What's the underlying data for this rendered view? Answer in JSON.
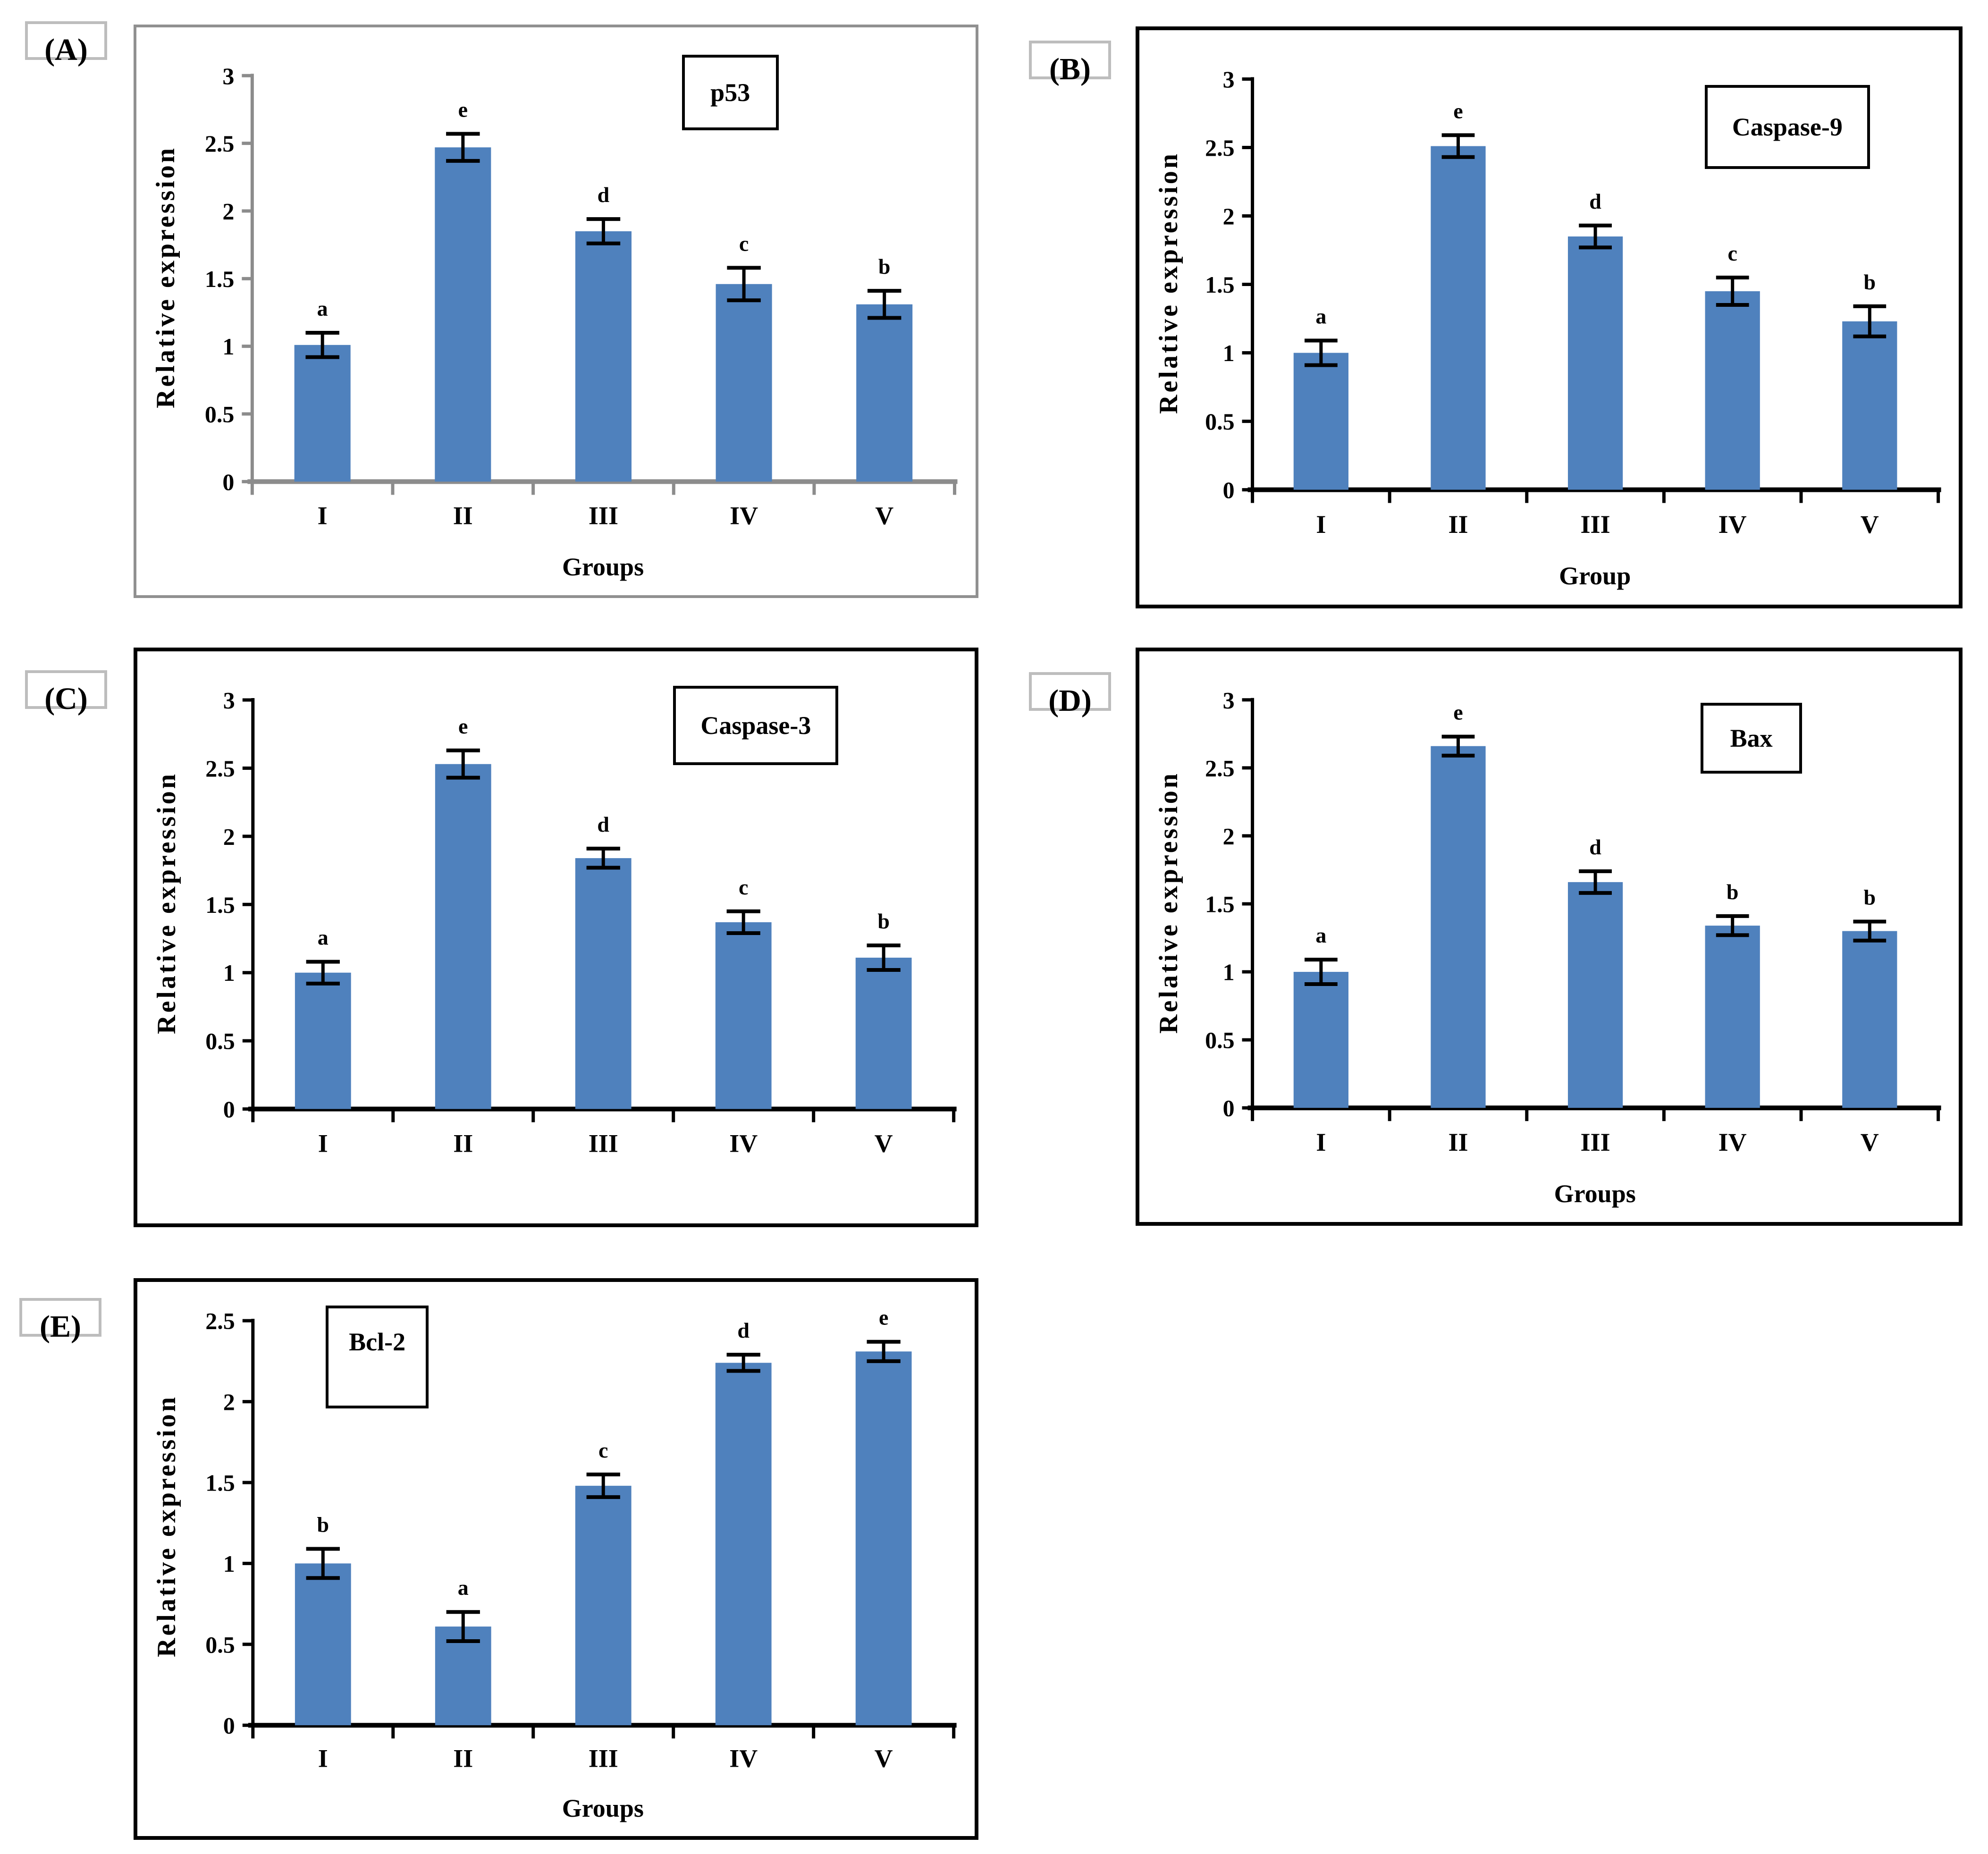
{
  "figure": {
    "background": "#ffffff",
    "tag_border_color": "#bdbdbd",
    "bar_color": "#4F81BD",
    "error_bar_color": "#000000"
  },
  "chart_data": [
    {
      "type": "bar",
      "panel_label": "(A)",
      "title": "p53",
      "ylabel": "Relative expression",
      "xlabel": "Groups",
      "categories": [
        "I",
        "II",
        "III",
        "IV",
        "V"
      ],
      "values": [
        1.01,
        2.47,
        1.85,
        1.46,
        1.31
      ],
      "errors": [
        0.09,
        0.1,
        0.09,
        0.12,
        0.1
      ],
      "sig_letters": [
        "a",
        "e",
        "d",
        "c",
        "b"
      ],
      "ylim": [
        0,
        3
      ],
      "ytick_step": 0.5,
      "ytick_labels": [
        "0",
        "0.5",
        "1",
        "1.5",
        "2",
        "2.5",
        "3"
      ],
      "grid": "off",
      "legend": "none",
      "bar_color": "#4F81BD",
      "axis_color": "#8C8C8C",
      "frame_color": "#909090"
    },
    {
      "type": "bar",
      "panel_label": "(B)",
      "title": "Caspase-9",
      "ylabel": "Relative expression",
      "xlabel": "Group",
      "categories": [
        "I",
        "II",
        "III",
        "IV",
        "V"
      ],
      "values": [
        1.0,
        2.51,
        1.85,
        1.45,
        1.23
      ],
      "errors": [
        0.09,
        0.08,
        0.08,
        0.1,
        0.11
      ],
      "sig_letters": [
        "a",
        "e",
        "d",
        "c",
        "b"
      ],
      "ylim": [
        0,
        3
      ],
      "ytick_step": 0.5,
      "ytick_labels": [
        "0",
        "0.5",
        "1",
        "1.5",
        "2",
        "2.5",
        "3"
      ],
      "grid": "off",
      "legend": "none",
      "bar_color": "#4F81BD",
      "axis_color": "#000000",
      "frame_color": "#000000"
    },
    {
      "type": "bar",
      "panel_label": "(C)",
      "title": "Caspase-3",
      "ylabel": "Relative expression",
      "xlabel": "",
      "categories": [
        "I",
        "II",
        "III",
        "IV",
        "V"
      ],
      "values": [
        1.0,
        2.53,
        1.84,
        1.37,
        1.11
      ],
      "errors": [
        0.08,
        0.1,
        0.07,
        0.08,
        0.09
      ],
      "sig_letters": [
        "a",
        "e",
        "d",
        "c",
        "b"
      ],
      "ylim": [
        0,
        3
      ],
      "ytick_step": 0.5,
      "ytick_labels": [
        "0",
        "0.5",
        "1",
        "1.5",
        "2",
        "2.5",
        "3"
      ],
      "grid": "off",
      "legend": "none",
      "bar_color": "#4F81BD",
      "axis_color": "#000000",
      "frame_color": "#000000"
    },
    {
      "type": "bar",
      "panel_label": "(D)",
      "title": "Bax",
      "ylabel": "Relative expression",
      "xlabel": "Groups",
      "categories": [
        "I",
        "II",
        "III",
        "IV",
        "V"
      ],
      "values": [
        1.0,
        2.66,
        1.66,
        1.34,
        1.3
      ],
      "errors": [
        0.09,
        0.07,
        0.08,
        0.07,
        0.07
      ],
      "sig_letters": [
        "a",
        "e",
        "d",
        "b",
        "b"
      ],
      "ylim": [
        0,
        3
      ],
      "ytick_step": 0.5,
      "ytick_labels": [
        "0",
        "0.5",
        "1",
        "1.5",
        "2",
        "2.5",
        "3"
      ],
      "grid": "off",
      "legend": "none",
      "bar_color": "#4F81BD",
      "axis_color": "#000000",
      "frame_color": "#000000"
    },
    {
      "type": "bar",
      "panel_label": "(E)",
      "title": "Bcl-2",
      "ylabel": "Relative expression",
      "xlabel": "Groups",
      "categories": [
        "I",
        "II",
        "III",
        "IV",
        "V"
      ],
      "values": [
        1.0,
        0.61,
        1.48,
        2.24,
        2.31
      ],
      "errors": [
        0.09,
        0.09,
        0.07,
        0.05,
        0.06
      ],
      "sig_letters": [
        "b",
        "a",
        "c",
        "d",
        "e"
      ],
      "ylim": [
        0,
        2.5
      ],
      "ytick_step": 0.5,
      "ytick_labels": [
        "0",
        "0.5",
        "1",
        "1.5",
        "2",
        "2.5"
      ],
      "grid": "off",
      "legend": "none",
      "bar_color": "#4F81BD",
      "axis_color": "#000000",
      "frame_color": "#000000"
    }
  ]
}
